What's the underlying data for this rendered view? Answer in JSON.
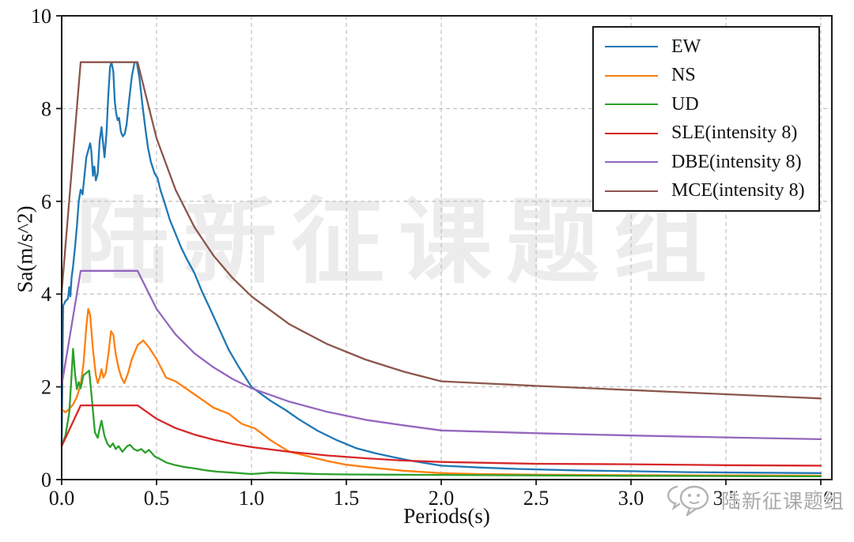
{
  "chart_data": {
    "type": "line",
    "title": "",
    "xlabel": "Periods(s)",
    "ylabel": "Sa(m/s^2)",
    "xlim": [
      0,
      4.0
    ],
    "ylim": [
      0,
      10
    ],
    "x_ticks": [
      0.0,
      0.5,
      1.0,
      1.5,
      2.0,
      2.5,
      3.0,
      3.5,
      4.0
    ],
    "x_tick_labels": [
      "0.0",
      "0.5",
      "1.0",
      "1.5",
      "2.0",
      "2.5",
      "3.0",
      "3.5",
      "4.0"
    ],
    "y_ticks": [
      0,
      2,
      4,
      6,
      8,
      10
    ],
    "y_tick_labels": [
      "0",
      "2",
      "4",
      "6",
      "8",
      "10"
    ],
    "grid": "dashed",
    "grid_color": "#bbbbbb",
    "spine_color": "#1a1a1a",
    "legend_position": "upper right",
    "series": [
      {
        "name": "EW",
        "color": "#1f77b4",
        "points": [
          [
            0,
            0.75
          ],
          [
            0.008,
            3.75
          ],
          [
            0.02,
            3.85
          ],
          [
            0.033,
            3.9
          ],
          [
            0.04,
            4.15
          ],
          [
            0.046,
            3.95
          ],
          [
            0.052,
            4.35
          ],
          [
            0.06,
            4.6
          ],
          [
            0.07,
            5.0
          ],
          [
            0.08,
            5.45
          ],
          [
            0.09,
            6.0
          ],
          [
            0.1,
            6.25
          ],
          [
            0.11,
            6.15
          ],
          [
            0.12,
            6.55
          ],
          [
            0.13,
            6.95
          ],
          [
            0.14,
            7.1
          ],
          [
            0.15,
            7.25
          ],
          [
            0.156,
            7.1
          ],
          [
            0.165,
            6.55
          ],
          [
            0.172,
            6.75
          ],
          [
            0.18,
            6.45
          ],
          [
            0.19,
            6.6
          ],
          [
            0.2,
            7.3
          ],
          [
            0.21,
            7.6
          ],
          [
            0.216,
            7.35
          ],
          [
            0.226,
            6.95
          ],
          [
            0.236,
            7.45
          ],
          [
            0.246,
            8.3
          ],
          [
            0.255,
            8.9
          ],
          [
            0.262,
            9.0
          ],
          [
            0.272,
            8.8
          ],
          [
            0.28,
            8.15
          ],
          [
            0.287,
            7.9
          ],
          [
            0.295,
            7.75
          ],
          [
            0.302,
            7.8
          ],
          [
            0.312,
            7.5
          ],
          [
            0.322,
            7.4
          ],
          [
            0.332,
            7.45
          ],
          [
            0.342,
            7.65
          ],
          [
            0.356,
            8.2
          ],
          [
            0.37,
            8.7
          ],
          [
            0.384,
            9.0
          ],
          [
            0.396,
            9.0
          ],
          [
            0.41,
            8.65
          ],
          [
            0.425,
            8.1
          ],
          [
            0.44,
            7.6
          ],
          [
            0.455,
            7.15
          ],
          [
            0.47,
            6.85
          ],
          [
            0.49,
            6.6
          ],
          [
            0.505,
            6.5
          ],
          [
            0.52,
            6.25
          ],
          [
            0.54,
            6.0
          ],
          [
            0.57,
            5.6
          ],
          [
            0.6,
            5.3
          ],
          [
            0.63,
            5.0
          ],
          [
            0.66,
            4.75
          ],
          [
            0.7,
            4.45
          ],
          [
            0.74,
            4.05
          ],
          [
            0.78,
            3.7
          ],
          [
            0.83,
            3.25
          ],
          [
            0.88,
            2.8
          ],
          [
            0.93,
            2.45
          ],
          [
            1.0,
            2.0
          ],
          [
            1.05,
            1.85
          ],
          [
            1.1,
            1.7
          ],
          [
            1.18,
            1.5
          ],
          [
            1.25,
            1.3
          ],
          [
            1.35,
            1.05
          ],
          [
            1.45,
            0.85
          ],
          [
            1.55,
            0.68
          ],
          [
            1.65,
            0.57
          ],
          [
            1.75,
            0.48
          ],
          [
            1.85,
            0.4
          ],
          [
            2.0,
            0.3
          ],
          [
            2.2,
            0.26
          ],
          [
            2.4,
            0.23
          ],
          [
            2.7,
            0.2
          ],
          [
            3.0,
            0.18
          ],
          [
            3.3,
            0.16
          ],
          [
            3.6,
            0.15
          ],
          [
            4.0,
            0.14
          ]
        ]
      },
      {
        "name": "NS",
        "color": "#ff7f0e",
        "points": [
          [
            0,
            1.52
          ],
          [
            0.02,
            1.45
          ],
          [
            0.04,
            1.52
          ],
          [
            0.06,
            1.62
          ],
          [
            0.08,
            1.78
          ],
          [
            0.1,
            2.05
          ],
          [
            0.115,
            2.5
          ],
          [
            0.13,
            3.3
          ],
          [
            0.14,
            3.68
          ],
          [
            0.15,
            3.55
          ],
          [
            0.165,
            2.8
          ],
          [
            0.18,
            2.25
          ],
          [
            0.19,
            2.08
          ],
          [
            0.2,
            2.2
          ],
          [
            0.21,
            2.38
          ],
          [
            0.22,
            2.2
          ],
          [
            0.232,
            2.3
          ],
          [
            0.246,
            2.7
          ],
          [
            0.26,
            3.2
          ],
          [
            0.272,
            3.12
          ],
          [
            0.285,
            2.7
          ],
          [
            0.3,
            2.4
          ],
          [
            0.315,
            2.2
          ],
          [
            0.33,
            2.08
          ],
          [
            0.35,
            2.3
          ],
          [
            0.37,
            2.6
          ],
          [
            0.4,
            2.9
          ],
          [
            0.43,
            3.0
          ],
          [
            0.46,
            2.85
          ],
          [
            0.5,
            2.6
          ],
          [
            0.55,
            2.2
          ],
          [
            0.6,
            2.12
          ],
          [
            0.66,
            1.95
          ],
          [
            0.72,
            1.78
          ],
          [
            0.8,
            1.55
          ],
          [
            0.88,
            1.42
          ],
          [
            0.95,
            1.2
          ],
          [
            1.02,
            1.1
          ],
          [
            1.1,
            0.85
          ],
          [
            1.2,
            0.6
          ],
          [
            1.3,
            0.5
          ],
          [
            1.4,
            0.4
          ],
          [
            1.5,
            0.32
          ],
          [
            1.65,
            0.25
          ],
          [
            1.8,
            0.19
          ],
          [
            2.0,
            0.14
          ],
          [
            2.2,
            0.12
          ],
          [
            2.5,
            0.105
          ],
          [
            3.0,
            0.095
          ],
          [
            3.5,
            0.09
          ],
          [
            4.0,
            0.085
          ]
        ]
      },
      {
        "name": "UD",
        "color": "#2ca02c",
        "points": [
          [
            0,
            0.73
          ],
          [
            0.02,
            0.95
          ],
          [
            0.04,
            1.45
          ],
          [
            0.05,
            2.1
          ],
          [
            0.06,
            2.82
          ],
          [
            0.07,
            2.3
          ],
          [
            0.08,
            1.95
          ],
          [
            0.09,
            2.1
          ],
          [
            0.1,
            1.97
          ],
          [
            0.115,
            2.25
          ],
          [
            0.13,
            2.3
          ],
          [
            0.145,
            2.35
          ],
          [
            0.16,
            1.7
          ],
          [
            0.175,
            1.02
          ],
          [
            0.19,
            0.9
          ],
          [
            0.2,
            1.1
          ],
          [
            0.21,
            1.27
          ],
          [
            0.225,
            0.95
          ],
          [
            0.24,
            0.78
          ],
          [
            0.255,
            0.7
          ],
          [
            0.27,
            0.78
          ],
          [
            0.285,
            0.66
          ],
          [
            0.3,
            0.72
          ],
          [
            0.32,
            0.6
          ],
          [
            0.345,
            0.72
          ],
          [
            0.36,
            0.75
          ],
          [
            0.38,
            0.66
          ],
          [
            0.4,
            0.62
          ],
          [
            0.42,
            0.66
          ],
          [
            0.44,
            0.58
          ],
          [
            0.46,
            0.64
          ],
          [
            0.49,
            0.5
          ],
          [
            0.52,
            0.44
          ],
          [
            0.55,
            0.37
          ],
          [
            0.6,
            0.31
          ],
          [
            0.65,
            0.27
          ],
          [
            0.7,
            0.24
          ],
          [
            0.76,
            0.2
          ],
          [
            0.82,
            0.17
          ],
          [
            0.9,
            0.15
          ],
          [
            1.0,
            0.12
          ],
          [
            1.1,
            0.15
          ],
          [
            1.2,
            0.14
          ],
          [
            1.35,
            0.12
          ],
          [
            1.5,
            0.11
          ],
          [
            1.75,
            0.105
          ],
          [
            2.0,
            0.1
          ],
          [
            2.5,
            0.09
          ],
          [
            3.0,
            0.08
          ],
          [
            3.5,
            0.075
          ],
          [
            4.0,
            0.07
          ]
        ]
      },
      {
        "name": "SLE(intensity 8)",
        "color": "#d62728",
        "points": [
          [
            0,
            0.72
          ],
          [
            0.1,
            1.6
          ],
          [
            0.4,
            1.6
          ],
          [
            0.5,
            1.31
          ],
          [
            0.6,
            1.11
          ],
          [
            0.7,
            0.97
          ],
          [
            0.8,
            0.86
          ],
          [
            0.9,
            0.77
          ],
          [
            1.0,
            0.7
          ],
          [
            1.2,
            0.6
          ],
          [
            1.4,
            0.52
          ],
          [
            1.6,
            0.46
          ],
          [
            1.8,
            0.41
          ],
          [
            2.0,
            0.38
          ],
          [
            2.5,
            0.34
          ],
          [
            3.0,
            0.33
          ],
          [
            3.5,
            0.31
          ],
          [
            4.0,
            0.3
          ]
        ]
      },
      {
        "name": "DBE(intensity 8)",
        "color": "#9467bd",
        "points": [
          [
            0,
            2.03
          ],
          [
            0.1,
            4.5
          ],
          [
            0.4,
            4.5
          ],
          [
            0.5,
            3.68
          ],
          [
            0.6,
            3.13
          ],
          [
            0.7,
            2.72
          ],
          [
            0.8,
            2.42
          ],
          [
            0.9,
            2.17
          ],
          [
            1.0,
            1.97
          ],
          [
            1.2,
            1.68
          ],
          [
            1.4,
            1.46
          ],
          [
            1.6,
            1.29
          ],
          [
            1.8,
            1.17
          ],
          [
            2.0,
            1.06
          ],
          [
            2.5,
            1.0
          ],
          [
            3.0,
            0.95
          ],
          [
            3.5,
            0.91
          ],
          [
            4.0,
            0.87
          ]
        ]
      },
      {
        "name": "MCE(intensity 8)",
        "color": "#8c564b",
        "points": [
          [
            0,
            4.05
          ],
          [
            0.1,
            9.0
          ],
          [
            0.4,
            9.0
          ],
          [
            0.5,
            7.36
          ],
          [
            0.6,
            6.25
          ],
          [
            0.7,
            5.44
          ],
          [
            0.8,
            4.83
          ],
          [
            0.9,
            4.35
          ],
          [
            1.0,
            3.95
          ],
          [
            1.2,
            3.35
          ],
          [
            1.4,
            2.92
          ],
          [
            1.6,
            2.59
          ],
          [
            1.8,
            2.33
          ],
          [
            2.0,
            2.12
          ],
          [
            2.5,
            2.02
          ],
          [
            3.0,
            1.93
          ],
          [
            3.5,
            1.84
          ],
          [
            4.0,
            1.75
          ]
        ]
      }
    ]
  },
  "watermark": {
    "center_text": "陆新征课题组",
    "badge_text": "陆新征课题组"
  }
}
